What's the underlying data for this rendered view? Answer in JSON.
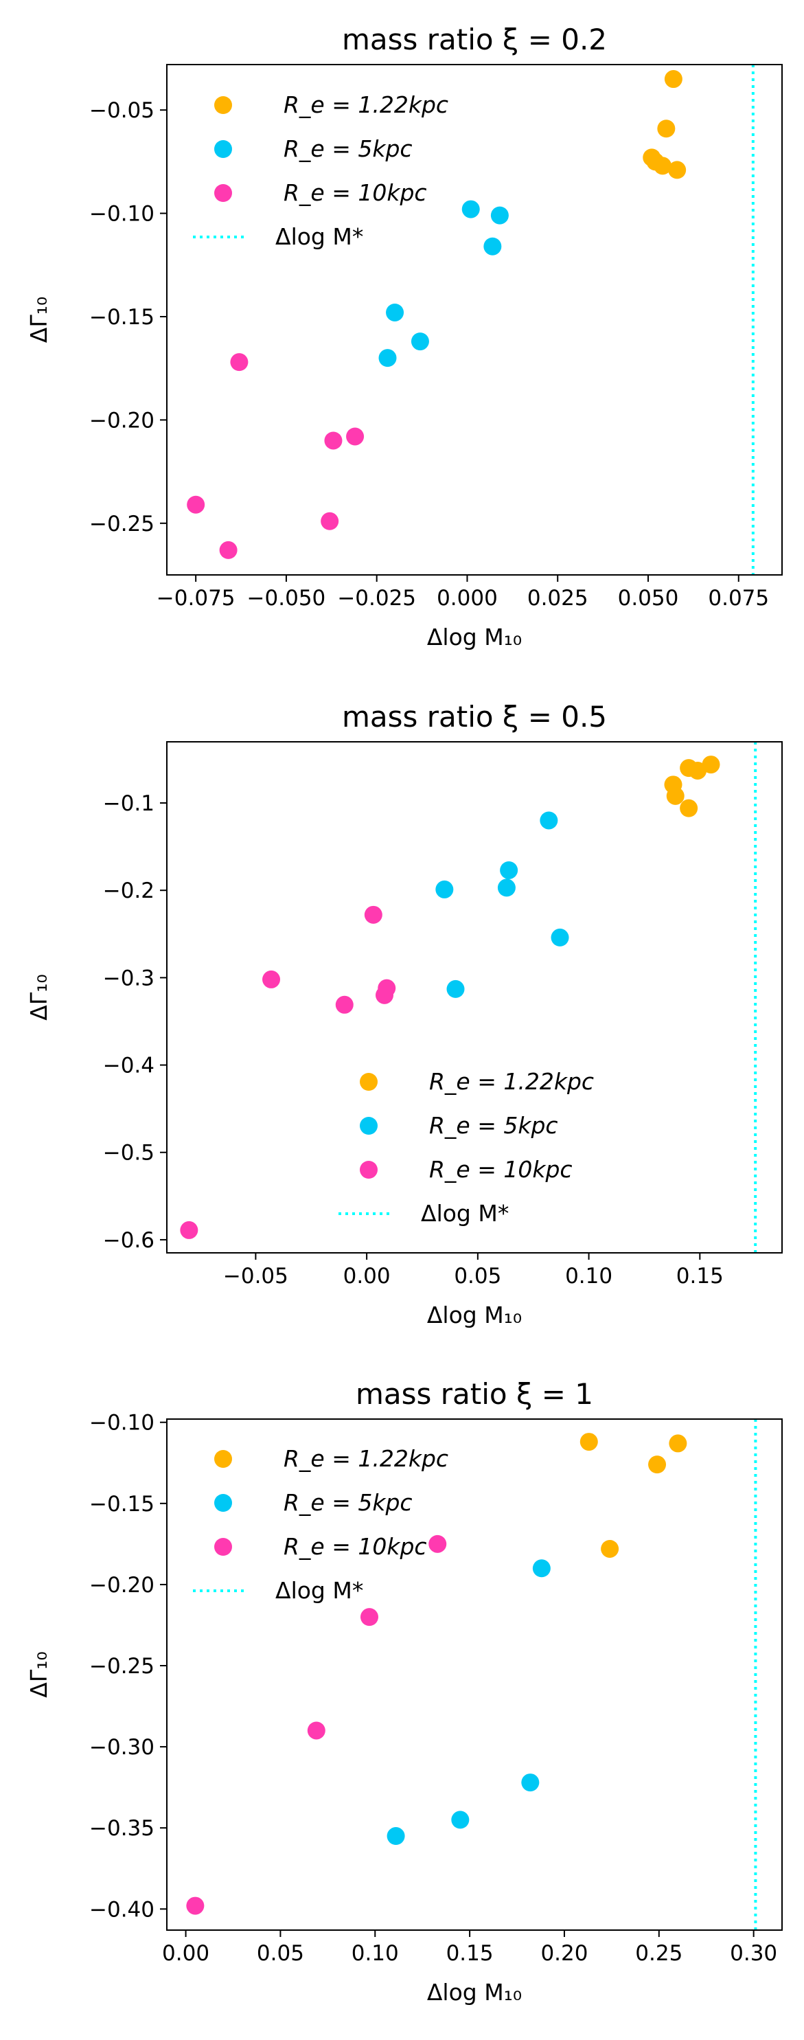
{
  "figure": {
    "colors": {
      "Re_1_22": "#ffb300",
      "Re_5": "#00c8f5",
      "Re_10": "#ff3ab0",
      "delta_logM": "#00ffff"
    }
  },
  "chart_data": [
    {
      "type": "scatter",
      "title": "mass ratio ξ = 0.2",
      "xlabel": "Δlog M₁₀",
      "ylabel": "ΔΓ₁₀",
      "xlim": [
        -0.083,
        0.087
      ],
      "ylim": [
        -0.275,
        -0.028
      ],
      "xticks": [
        -0.075,
        -0.05,
        -0.025,
        0.0,
        0.025,
        0.05,
        0.075
      ],
      "xtick_labels": [
        "−0.075",
        "−0.050",
        "−0.025",
        "0.000",
        "0.025",
        "0.050",
        "0.075"
      ],
      "yticks": [
        -0.05,
        -0.1,
        -0.15,
        -0.2,
        -0.25
      ],
      "ytick_labels": [
        "−0.05",
        "−0.10",
        "−0.15",
        "−0.20",
        "−0.25"
      ],
      "legend": {
        "placement": "upper-left"
      },
      "series": [
        {
          "name": "R_e = 1.22kpc",
          "color_key": "Re_1_22",
          "points": [
            [
              0.057,
              -0.035
            ],
            [
              0.055,
              -0.059
            ],
            [
              0.051,
              -0.073
            ],
            [
              0.052,
              -0.075
            ],
            [
              0.054,
              -0.077
            ],
            [
              0.058,
              -0.079
            ]
          ]
        },
        {
          "name": "R_e = 5kpc",
          "color_key": "Re_5",
          "points": [
            [
              0.001,
              -0.098
            ],
            [
              0.009,
              -0.101
            ],
            [
              0.007,
              -0.116
            ],
            [
              -0.02,
              -0.148
            ],
            [
              -0.013,
              -0.162
            ],
            [
              -0.022,
              -0.17
            ]
          ]
        },
        {
          "name": "R_e = 10kpc",
          "color_key": "Re_10",
          "points": [
            [
              -0.063,
              -0.172
            ],
            [
              -0.031,
              -0.208
            ],
            [
              -0.037,
              -0.21
            ],
            [
              -0.075,
              -0.241
            ],
            [
              -0.038,
              -0.249
            ],
            [
              -0.066,
              -0.263
            ]
          ]
        }
      ],
      "vline": {
        "name": "Δlog M*",
        "x": 0.079,
        "color_key": "delta_logM",
        "style": "dotted"
      }
    },
    {
      "type": "scatter",
      "title": "mass ratio ξ = 0.5",
      "xlabel": "Δlog M₁₀",
      "ylabel": "ΔΓ₁₀",
      "xlim": [
        -0.09,
        0.187
      ],
      "ylim": [
        -0.615,
        -0.03
      ],
      "xticks": [
        -0.05,
        0.0,
        0.05,
        0.1,
        0.15
      ],
      "xtick_labels": [
        "−0.05",
        "0.00",
        "0.05",
        "0.10",
        "0.15"
      ],
      "yticks": [
        -0.1,
        -0.2,
        -0.3,
        -0.4,
        -0.5,
        -0.6
      ],
      "ytick_labels": [
        "−0.1",
        "−0.2",
        "−0.3",
        "−0.4",
        "−0.5",
        "−0.6"
      ],
      "legend": {
        "placement": "lower-center"
      },
      "series": [
        {
          "name": "R_e = 1.22kpc",
          "color_key": "Re_1_22",
          "points": [
            [
              0.155,
              -0.056
            ],
            [
              0.145,
              -0.06
            ],
            [
              0.149,
              -0.063
            ],
            [
              0.138,
              -0.079
            ],
            [
              0.139,
              -0.092
            ],
            [
              0.145,
              -0.106
            ]
          ]
        },
        {
          "name": "R_e = 5kpc",
          "color_key": "Re_5",
          "points": [
            [
              0.082,
              -0.12
            ],
            [
              0.064,
              -0.177
            ],
            [
              0.035,
              -0.199
            ],
            [
              0.063,
              -0.197
            ],
            [
              0.087,
              -0.254
            ],
            [
              0.04,
              -0.313
            ]
          ]
        },
        {
          "name": "R_e = 10kpc",
          "color_key": "Re_10",
          "points": [
            [
              0.003,
              -0.228
            ],
            [
              -0.043,
              -0.302
            ],
            [
              0.009,
              -0.312
            ],
            [
              0.008,
              -0.32
            ],
            [
              -0.01,
              -0.331
            ],
            [
              -0.08,
              -0.589
            ]
          ]
        }
      ],
      "vline": {
        "name": "Δlog M*",
        "x": 0.175,
        "color_key": "delta_logM",
        "style": "dotted"
      }
    },
    {
      "type": "scatter",
      "title": "mass ratio ξ = 1",
      "xlabel": "Δlog M₁₀",
      "ylabel": "ΔΓ₁₀",
      "xlim": [
        -0.01,
        0.315
      ],
      "ylim": [
        -0.413,
        -0.098
      ],
      "xticks": [
        0.0,
        0.05,
        0.1,
        0.15,
        0.2,
        0.25,
        0.3
      ],
      "xtick_labels": [
        "0.00",
        "0.05",
        "0.10",
        "0.15",
        "0.20",
        "0.25",
        "0.30"
      ],
      "yticks": [
        -0.1,
        -0.15,
        -0.2,
        -0.25,
        -0.3,
        -0.35,
        -0.4
      ],
      "ytick_labels": [
        "−0.10",
        "−0.15",
        "−0.20",
        "−0.25",
        "−0.30",
        "−0.35",
        "−0.40"
      ],
      "legend": {
        "placement": "upper-left"
      },
      "series": [
        {
          "name": "R_e = 1.22kpc",
          "color_key": "Re_1_22",
          "points": [
            [
              0.213,
              -0.112
            ],
            [
              0.26,
              -0.113
            ],
            [
              0.249,
              -0.126
            ],
            [
              0.224,
              -0.178
            ]
          ]
        },
        {
          "name": "R_e = 5kpc",
          "color_key": "Re_5",
          "points": [
            [
              0.188,
              -0.19
            ],
            [
              0.182,
              -0.322
            ],
            [
              0.145,
              -0.345
            ],
            [
              0.111,
              -0.355
            ]
          ]
        },
        {
          "name": "R_e = 10kpc",
          "color_key": "Re_10",
          "points": [
            [
              0.133,
              -0.175
            ],
            [
              0.097,
              -0.22
            ],
            [
              0.069,
              -0.29
            ],
            [
              0.005,
              -0.398
            ]
          ]
        }
      ],
      "vline": {
        "name": "Δlog M*",
        "x": 0.301,
        "color_key": "delta_logM",
        "style": "dotted"
      }
    }
  ]
}
